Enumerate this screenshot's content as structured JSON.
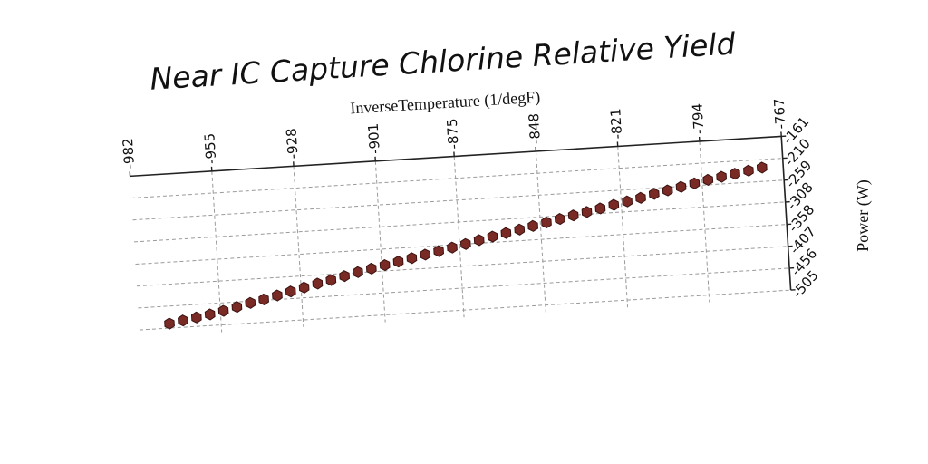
{
  "chart_data": {
    "type": "scatter",
    "title": "Near IC Capture Chlorine Relative Yield",
    "xlabel": "InverseTemperature (1/degF)",
    "ylabel": "Power (W)",
    "x_ticks": [
      "-982",
      "-955",
      "-928",
      "-901",
      "-875",
      "-848",
      "-821",
      "-794",
      "-767"
    ],
    "y_ticks": [
      "-161",
      "-210",
      "-259",
      "-308",
      "-358",
      "-407",
      "-456",
      "-505"
    ],
    "xlim": [
      -982,
      -767
    ],
    "ylim": [
      -505,
      -161
    ],
    "x_axis_position": "top",
    "y_axis_position": "right",
    "grid": true,
    "marker": "hexagon",
    "marker_color": "#7a2a25",
    "series": [
      {
        "x": [
          -972,
          -967.5,
          -963,
          -958.5,
          -954,
          -949.5,
          -945,
          -940.5,
          -936,
          -931.5,
          -927,
          -922.5,
          -918,
          -913.5,
          -909,
          -904.5,
          -900,
          -895.5,
          -891,
          -886.5,
          -882,
          -877.5,
          -873,
          -868.5,
          -864,
          -859.5,
          -855,
          -850.5,
          -846,
          -841.5,
          -837,
          -832.5,
          -828,
          -823.5,
          -819,
          -814.5,
          -810,
          -805.5,
          -801,
          -796.5,
          -792,
          -787.5,
          -783,
          -778.5,
          -774
        ],
        "y": [
          -495,
          -490,
          -485,
          -480,
          -474,
          -467,
          -460,
          -454,
          -447,
          -440,
          -433,
          -426,
          -420,
          -413,
          -406,
          -400,
          -394,
          -388,
          -382,
          -376,
          -370,
          -364,
          -358,
          -351,
          -345,
          -339,
          -333,
          -327,
          -321,
          -315,
          -309,
          -303,
          -297,
          -291,
          -285,
          -279,
          -272,
          -266,
          -260,
          -254,
          -248,
          -243,
          -238,
          -233,
          -228
        ]
      }
    ]
  }
}
